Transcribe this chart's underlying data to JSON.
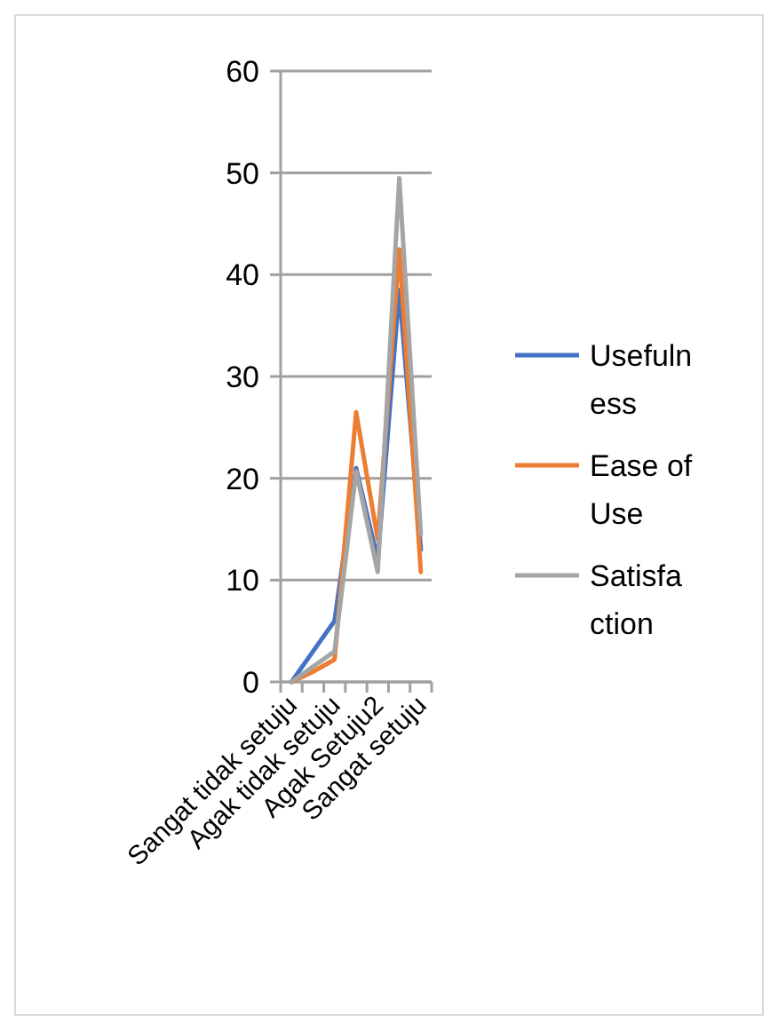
{
  "chart_data": {
    "type": "line",
    "categories": [
      "Sangat tidak setuju",
      null,
      "Agak tidak setuju",
      null,
      "Agak Setuju2",
      null,
      "Sangat setuju"
    ],
    "series": [
      {
        "name": "Usefulness",
        "color": "#4472c4",
        "values": [
          0,
          3,
          6,
          21,
          12,
          38.5,
          13
        ]
      },
      {
        "name": "Ease of Use",
        "color": "#ed7d31",
        "values": [
          0,
          1,
          2.2,
          26.5,
          14,
          42.5,
          10.8
        ]
      },
      {
        "name": "Satisfaction",
        "color": "#a5a5a5",
        "values": [
          0,
          1.5,
          3,
          20.7,
          10.8,
          49.5,
          14.5
        ]
      }
    ],
    "ylim": [
      0,
      60
    ],
    "yticks": [
      0,
      10,
      20,
      30,
      40,
      50,
      60
    ],
    "grid": "y",
    "legend": "right",
    "marker": "none",
    "line_style": "solid"
  }
}
